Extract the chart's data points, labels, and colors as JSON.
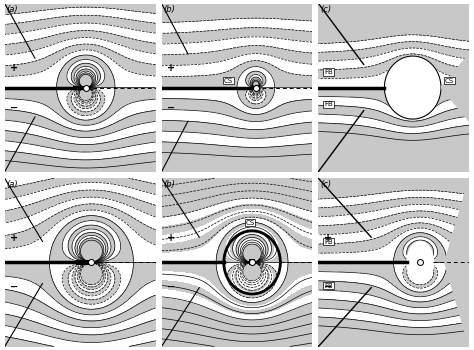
{
  "fig_width": 4.74,
  "fig_height": 3.5,
  "dpi": 100,
  "background_color": "#ffffff",
  "light_gray": "#c8c8c8",
  "mid_gray": "#b0b0b0",
  "white": "#ffffff",
  "black": "#000000",
  "panel_labels_top": [
    "(a)",
    "(b)",
    "(c)"
  ],
  "panel_labels_bottom": [
    "(a)",
    "(b)",
    "(c)"
  ]
}
